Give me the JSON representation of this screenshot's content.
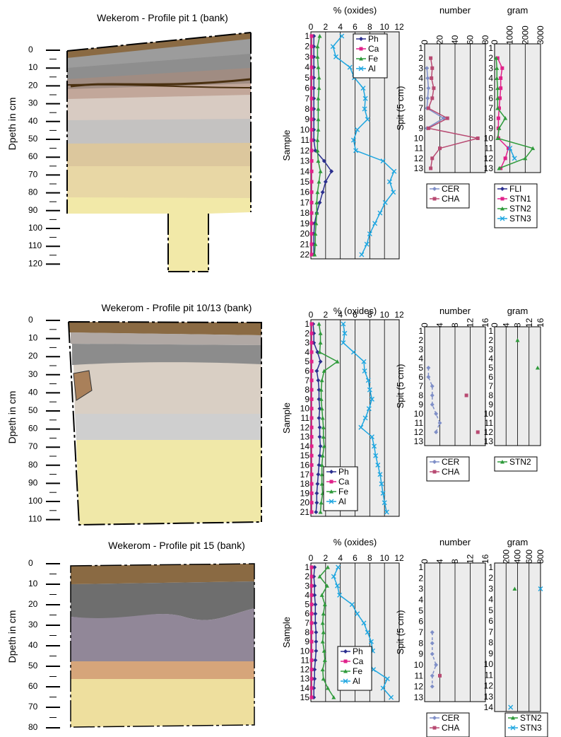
{
  "colors": {
    "Ph": "#2b2f8f",
    "Ca": "#e0218a",
    "Fe": "#2e9a3a",
    "Al": "#1ea6e0",
    "CER": "#7f8fc8",
    "CHA": "#b84a72",
    "FLI": "#2b2f8f",
    "STN1": "#e0218a",
    "STN2": "#2e9a3a",
    "STN3": "#1ea6e0",
    "panel_bg": "#ececec"
  },
  "labels": {
    "depth_axis": "Dpeth in cm",
    "sample_axis": "Sample",
    "spit_axis": "Spit (5 cm)",
    "oxides_title": "% (oxides)",
    "number_title": "number",
    "gram_title": "gram"
  },
  "chart_data": [
    {
      "type": "line",
      "title": "Wekerom - Profile pit 1 (bank)",
      "depth_ticks": [
        "0",
        "10",
        "20",
        "30",
        "40",
        "50",
        "60",
        "70",
        "80",
        "90",
        "100",
        "110",
        "120"
      ],
      "oxides": {
        "xlim": [
          0,
          12
        ],
        "ticks": [
          "0",
          "2",
          "4",
          "6",
          "8",
          "10",
          "12"
        ],
        "samples": [
          "1",
          "2",
          "3",
          "4",
          "5",
          "6",
          "7",
          "8",
          "9",
          "10",
          "11",
          "12",
          "13",
          "14",
          "15",
          "16",
          "17",
          "18",
          "19",
          "20",
          "21",
          "22"
        ],
        "legend": [
          "Ph",
          "Ca",
          "Fe",
          "Al"
        ],
        "series": [
          {
            "name": "Ph",
            "values": [
              0.4,
              0.4,
              0.4,
              0.4,
              0.4,
              0.4,
              0.4,
              0.4,
              0.4,
              0.4,
              0.4,
              0.6,
              1.8,
              2.8,
              2.0,
              1.6,
              1.2,
              0.8,
              0.5,
              0.4,
              0.4,
              0.4
            ]
          },
          {
            "name": "Ca",
            "values": [
              0.1,
              0.1,
              0.1,
              0.1,
              0.1,
              0.1,
              0.1,
              0.1,
              0.1,
              0.1,
              0.1,
              0.1,
              0.1,
              0.1,
              0.1,
              0.1,
              0.1,
              0.1,
              0.1,
              0.1,
              0.1,
              0.1
            ]
          },
          {
            "name": "Fe",
            "values": [
              1.2,
              0.9,
              0.9,
              1.0,
              1.1,
              1.1,
              1.0,
              1.0,
              1.0,
              1.0,
              0.9,
              0.9,
              1.0,
              1.3,
              1.1,
              0.9,
              0.8,
              0.8,
              0.7,
              0.6,
              0.6,
              0.5
            ]
          },
          {
            "name": "Al",
            "values": [
              4.2,
              3.0,
              3.4,
              5.3,
              5.9,
              7.1,
              7.4,
              7.3,
              7.7,
              6.3,
              5.8,
              6.1,
              9.8,
              11.3,
              10.7,
              11.2,
              10.1,
              9.4,
              8.7,
              8.0,
              7.6,
              6.9
            ]
          }
        ]
      },
      "number": {
        "xlim": [
          0,
          80
        ],
        "ticks": [
          "0",
          "20",
          "40",
          "60",
          "80"
        ],
        "spits": [
          "1",
          "2",
          "3",
          "4",
          "5",
          "6",
          "7",
          "8",
          "9",
          "10",
          "11",
          "12",
          "13"
        ],
        "legend": [
          "CER",
          "CHA"
        ],
        "series": [
          {
            "name": "CER",
            "values": [
              null,
              null,
              3,
              4,
              5,
              4,
              3,
              25,
              3,
              null,
              null,
              null,
              null
            ]
          },
          {
            "name": "CHA",
            "values": [
              null,
              8,
              10,
              9,
              12,
              10,
              5,
              30,
              5,
              70,
              20,
              10,
              8
            ]
          }
        ]
      },
      "gram": {
        "xlim": [
          0,
          3000
        ],
        "ticks": [
          "0",
          "1000",
          "2000",
          "3000"
        ],
        "spits": [
          "1",
          "2",
          "3",
          "4",
          "5",
          "6",
          "7",
          "8",
          "9",
          "10",
          "11",
          "12",
          "13"
        ],
        "legend": [
          "FLI",
          "STN1",
          "STN2",
          "STN3"
        ],
        "series": [
          {
            "name": "FLI",
            "values": [
              null,
              null,
              null,
              null,
              null,
              null,
              null,
              null,
              null,
              null,
              null,
              null,
              null
            ]
          },
          {
            "name": "STN1",
            "values": [
              null,
              200,
              500,
              400,
              400,
              350,
              300,
              250,
              250,
              250,
              900,
              700,
              400
            ]
          },
          {
            "name": "STN2",
            "values": [
              null,
              100,
              150,
              150,
              200,
              200,
              200,
              700,
              300,
              200,
              2500,
              2000,
              300
            ]
          },
          {
            "name": "STN3",
            "values": [
              null,
              null,
              null,
              null,
              null,
              null,
              null,
              null,
              null,
              null,
              1000,
              1300,
              null
            ]
          }
        ]
      }
    },
    {
      "type": "line",
      "title": "Wekerom - Profile pit 10/13 (bank)",
      "depth_ticks": [
        "0",
        "10",
        "20",
        "30",
        "40",
        "50",
        "60",
        "70",
        "80",
        "90",
        "100",
        "110"
      ],
      "oxides": {
        "xlim": [
          0,
          12
        ],
        "ticks": [
          "0",
          "2",
          "4",
          "6",
          "8",
          "10",
          "12"
        ],
        "samples": [
          "1",
          "2",
          "3",
          "4",
          "5",
          "6",
          "7",
          "8",
          "9",
          "10",
          "11",
          "12",
          "13",
          "14",
          "15",
          "16",
          "17",
          "18",
          "19",
          "20",
          "21"
        ],
        "legend": [
          "Ph",
          "Ca",
          "Fe",
          "Al"
        ],
        "series": [
          {
            "name": "Ph",
            "values": [
              0.3,
              0.4,
              0.4,
              0.9,
              1.3,
              0.8,
              1.0,
              1.1,
              1.1,
              1.2,
              1.1,
              1.2,
              1.2,
              1.3,
              1.2,
              1.1,
              1.0,
              0.9,
              0.8,
              0.8,
              0.7
            ]
          },
          {
            "name": "Ca",
            "values": [
              0.1,
              0.1,
              0.1,
              0.1,
              0.1,
              0.1,
              0.1,
              0.1,
              0.1,
              0.1,
              0.1,
              0.1,
              0.1,
              0.1,
              0.1,
              0.1,
              0.1,
              0.1,
              0.1,
              0.1,
              0.1
            ]
          },
          {
            "name": "Fe",
            "values": [
              1.1,
              1.3,
              1.3,
              1.2,
              3.6,
              1.8,
              1.5,
              1.4,
              1.4,
              1.5,
              1.6,
              1.7,
              1.7,
              1.8,
              1.6,
              1.5,
              1.5,
              1.5,
              1.6,
              1.4,
              1.3
            ]
          },
          {
            "name": "Al",
            "values": [
              4.4,
              4.6,
              4.4,
              5.8,
              7.2,
              7.3,
              7.8,
              8.0,
              8.3,
              7.9,
              7.4,
              6.8,
              8.3,
              8.6,
              8.8,
              9.1,
              9.4,
              9.6,
              9.8,
              10.0,
              10.3
            ]
          }
        ]
      },
      "number": {
        "xlim": [
          0,
          16
        ],
        "ticks": [
          "0",
          "4",
          "8",
          "12",
          "16"
        ],
        "spits": [
          "1",
          "2",
          "3",
          "4",
          "5",
          "6",
          "7",
          "8",
          "9",
          "10",
          "11",
          "12",
          "13"
        ],
        "legend": [
          "CER",
          "CHA"
        ],
        "series": [
          {
            "name": "CER",
            "values": [
              null,
              null,
              null,
              null,
              1,
              1,
              2,
              2,
              2,
              3,
              4,
              3,
              null
            ]
          },
          {
            "name": "CHA",
            "values": [
              null,
              null,
              null,
              null,
              null,
              null,
              null,
              11,
              null,
              null,
              null,
              14,
              null
            ]
          }
        ]
      },
      "gram": {
        "xlim": [
          0,
          16
        ],
        "ticks": [
          "0",
          "4",
          "8",
          "12",
          "16"
        ],
        "spits": [
          "1",
          "2",
          "3",
          "4",
          "5",
          "6",
          "7",
          "8",
          "9",
          "10",
          "11",
          "12",
          "13"
        ],
        "legend": [
          "STN2"
        ],
        "series": [
          {
            "name": "STN2",
            "values": [
              null,
              8,
              null,
              null,
              15,
              null,
              null,
              null,
              null,
              null,
              null,
              null,
              null
            ]
          }
        ]
      }
    },
    {
      "type": "line",
      "title": "Wekerom - Profile pit 15 (bank)",
      "depth_ticks": [
        "0",
        "10",
        "20",
        "30",
        "40",
        "50",
        "60",
        "70",
        "80"
      ],
      "oxides": {
        "xlim": [
          0,
          12
        ],
        "ticks": [
          "0",
          "2",
          "4",
          "6",
          "8",
          "10",
          "12"
        ],
        "samples": [
          "1",
          "2",
          "3",
          "4",
          "5",
          "6",
          "7",
          "8",
          "9",
          "10",
          "11",
          "12",
          "13",
          "14",
          "15"
        ],
        "legend": [
          "Ph",
          "Ca",
          "Fe",
          "Al"
        ],
        "series": [
          {
            "name": "Ph",
            "values": [
              0.5,
              0.4,
              0.5,
              0.5,
              0.6,
              0.6,
              0.6,
              0.7,
              0.7,
              0.7,
              0.6,
              0.5,
              0.5,
              0.4,
              0.4
            ]
          },
          {
            "name": "Ca",
            "values": [
              0.1,
              0.1,
              0.1,
              0.1,
              0.1,
              0.1,
              0.1,
              0.1,
              0.1,
              0.1,
              0.1,
              0.1,
              0.1,
              0.1,
              0.1
            ]
          },
          {
            "name": "Fe",
            "values": [
              2.3,
              1.2,
              2.2,
              1.5,
              1.9,
              1.7,
              1.6,
              1.7,
              1.6,
              1.8,
              1.9,
              1.6,
              1.7,
              2.3,
              3.1
            ]
          },
          {
            "name": "Al",
            "values": [
              3.7,
              3.1,
              3.6,
              3.9,
              5.6,
              6.3,
              7.2,
              7.7,
              8.2,
              8.4,
              7.6,
              8.5,
              10.4,
              9.8,
              10.9
            ]
          }
        ]
      },
      "number": {
        "xlim": [
          0,
          16
        ],
        "ticks": [
          "0",
          "4",
          "8",
          "12",
          "16"
        ],
        "spits": [
          "1",
          "2",
          "3",
          "4",
          "5",
          "6",
          "7",
          "8",
          "9",
          "10",
          "11",
          "12",
          "13"
        ],
        "legend": [
          "CER",
          "CHA"
        ],
        "series": [
          {
            "name": "CER",
            "values": [
              null,
              null,
              null,
              null,
              null,
              null,
              2,
              2,
              2,
              3,
              2,
              2,
              null
            ]
          },
          {
            "name": "CHA",
            "values": [
              null,
              null,
              null,
              null,
              null,
              null,
              null,
              null,
              null,
              null,
              4,
              null,
              null
            ]
          }
        ]
      },
      "gram": {
        "xlim": [
          0,
          800
        ],
        "ticks": [
          "200",
          "400",
          "600",
          "800"
        ],
        "spits": [
          "1",
          "2",
          "3",
          "4",
          "5",
          "6",
          "7",
          "8",
          "9",
          "10",
          "11",
          "12",
          "13",
          "14"
        ],
        "legend": [
          "STN2",
          "STN3"
        ],
        "series": [
          {
            "name": "STN2",
            "values": [
              null,
              null,
              350,
              null,
              null,
              null,
              null,
              null,
              null,
              null,
              null,
              null,
              null,
              null
            ]
          },
          {
            "name": "STN3",
            "values": [
              null,
              null,
              800,
              null,
              null,
              null,
              null,
              null,
              null,
              null,
              null,
              null,
              null,
              280
            ]
          }
        ]
      }
    }
  ]
}
